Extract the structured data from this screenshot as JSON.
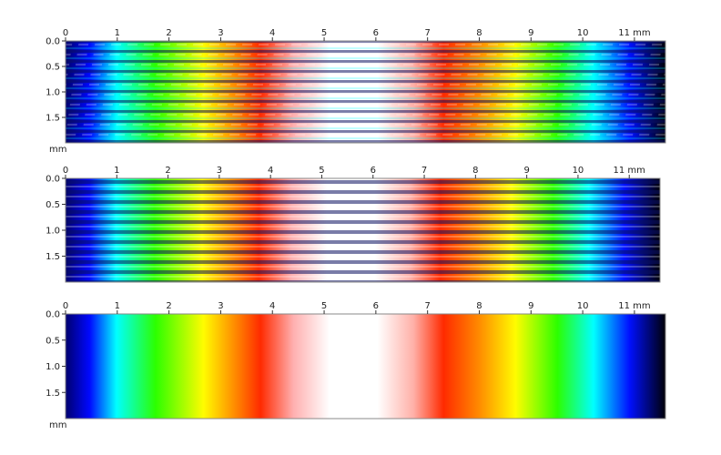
{
  "panels": [
    {
      "id": "top",
      "x_ticks": [
        "0",
        "1",
        "2",
        "3",
        "4",
        "5",
        "6",
        "7",
        "8",
        "9",
        "10",
        "11 mm"
      ],
      "y_ticks": [
        "0.0",
        "0.5",
        "1.0",
        "1.5"
      ],
      "y_unit": "mm",
      "content": "striped height map, pattern repeating along x (noisy)"
    },
    {
      "id": "middle",
      "x_ticks": [
        "0",
        "1",
        "2",
        "3",
        "4",
        "5",
        "6",
        "7",
        "8",
        "9",
        "10",
        "11 mm"
      ],
      "y_ticks": [
        "0.0",
        "0.5",
        "1.0",
        "1.5"
      ],
      "y_unit": "",
      "content": "striped height map, colored by x position"
    },
    {
      "id": "bottom",
      "x_ticks": [
        "0",
        "1",
        "2",
        "3",
        "4",
        "5",
        "6",
        "7",
        "8",
        "9",
        "10",
        "11 mm"
      ],
      "y_ticks": [
        "0.0",
        "0.5",
        "1.0",
        "1.5"
      ],
      "y_unit": "mm",
      "content": "smooth horizontal color gradient"
    }
  ],
  "colors": {
    "palette": [
      "#00008a",
      "#0000ff",
      "#00ffff",
      "#00ff00",
      "#ffff00",
      "#ff8c00",
      "#ff2800",
      "#ffffff",
      "#ffffff",
      "#ff2800",
      "#ff8c00",
      "#ffff00",
      "#00ff00",
      "#00ffff",
      "#0000ff",
      "#000008"
    ],
    "frame": "#888888",
    "stripe_dark": "#0a1060",
    "stripe_light": "#ffffff"
  }
}
